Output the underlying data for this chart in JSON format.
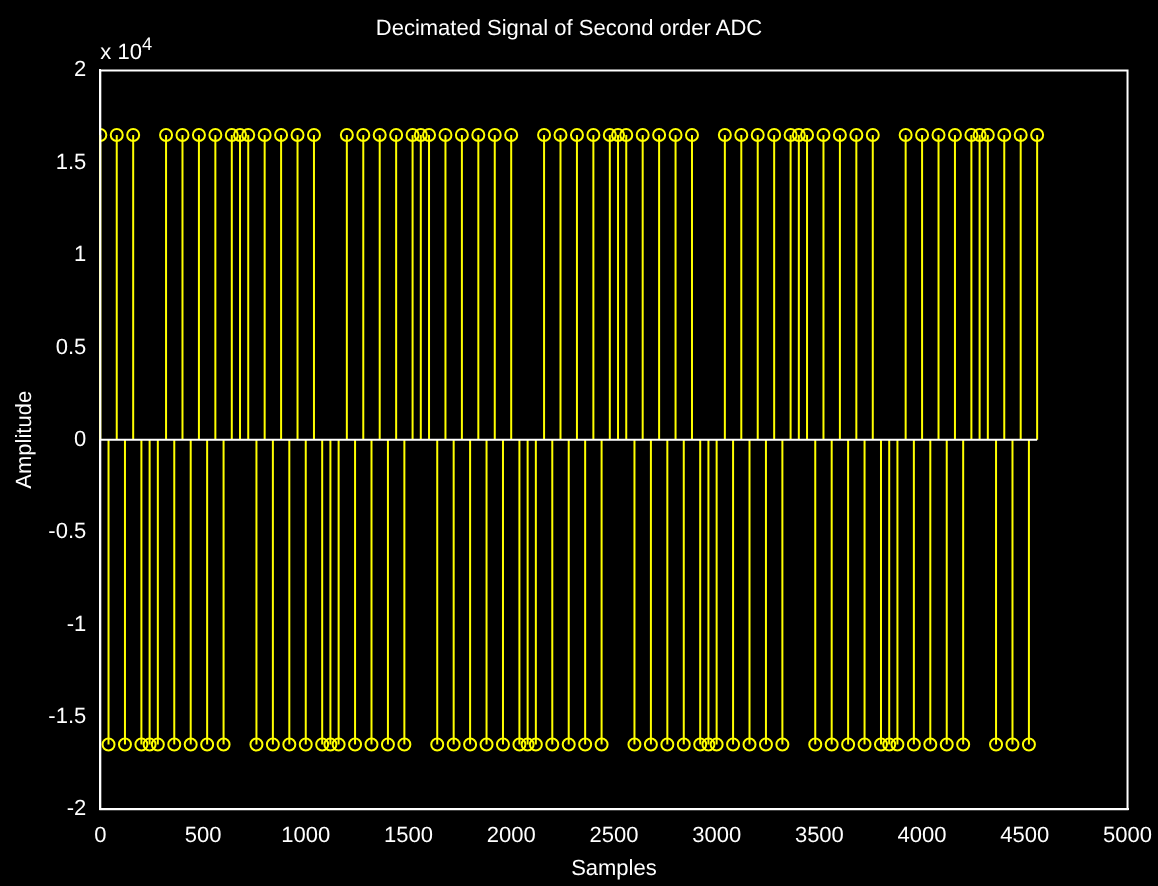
{
  "chart_data": {
    "type": "lollipop",
    "title": "Decimated Signal of Second order ADC",
    "xlabel": "Samples",
    "ylabel": "Amplitude",
    "annotations": [
      "x 10$^{4}$"
    ],
    "ref_lines": [
      {
        "axis": "y",
        "value": 0,
        "color": "#ffffff"
      }
    ],
    "marker": "circle",
    "color": "#ffff00",
    "grid": false,
    "legend": false,
    "xlim": [
      0,
      5000
    ],
    "xticks": [
      0,
      500,
      1000,
      1500,
      2000,
      2500,
      3000,
      3500,
      4000,
      4500,
      5000
    ],
    "ylim": [
      -2,
      2
    ],
    "yticks": [
      -2,
      -1.5,
      -1,
      -0.5,
      0,
      0.5,
      1,
      1.5,
      2
    ],
    "x": [
      0,
      40,
      80,
      120,
      160,
      200,
      240,
      280,
      320,
      360,
      400,
      440,
      480,
      520,
      560,
      600,
      640,
      680,
      720,
      760,
      800,
      840,
      880,
      920,
      960,
      1000,
      1040,
      1080,
      1120,
      1160,
      1200,
      1240,
      1280,
      1320,
      1360,
      1400,
      1440,
      1480,
      1520,
      1560,
      1600,
      1640,
      1680,
      1720,
      1760,
      1800,
      1840,
      1880,
      1920,
      1960,
      2000,
      2040,
      2080,
      2120,
      2160,
      2200,
      2240,
      2280,
      2320,
      2360,
      2400,
      2440,
      2480,
      2520,
      2560,
      2600,
      2640,
      2680,
      2720,
      2760,
      2800,
      2840,
      2880,
      2920,
      2960,
      3000,
      3040,
      3080,
      3120,
      3160,
      3200,
      3240,
      3280,
      3320,
      3360,
      3400,
      3440,
      3480,
      3520,
      3560,
      3600,
      3640,
      3680,
      3720,
      3760,
      3800,
      3840,
      3880,
      3920,
      3960,
      4000,
      4040,
      4080,
      4120,
      4160,
      4200,
      4240,
      4280,
      4320,
      4360,
      4400,
      4440,
      4480,
      4520,
      4560
    ],
    "values": [
      1.65,
      -1.65,
      1.65,
      -1.65,
      1.65,
      -1.65,
      -1.65,
      -1.65,
      1.65,
      -1.65,
      1.65,
      -1.65,
      1.65,
      -1.65,
      1.65,
      -1.65,
      1.65,
      1.65,
      1.65,
      -1.65,
      1.65,
      -1.65,
      1.65,
      -1.65,
      1.65,
      -1.65,
      1.65,
      -1.65,
      -1.65,
      -1.65,
      1.65,
      -1.65,
      1.65,
      -1.65,
      1.65,
      -1.65,
      1.65,
      -1.65,
      1.65,
      1.65,
      1.65,
      -1.65,
      1.65,
      -1.65,
      1.65,
      -1.65,
      1.65,
      -1.65,
      1.65,
      -1.65,
      1.65,
      -1.65,
      -1.65,
      -1.65,
      1.65,
      -1.65,
      1.65,
      -1.65,
      1.65,
      -1.65,
      1.65,
      -1.65,
      1.65,
      1.65,
      1.65,
      -1.65,
      1.65,
      -1.65,
      1.65,
      -1.65,
      1.65,
      -1.65,
      1.65,
      -1.65,
      -1.65,
      -1.65,
      1.65,
      -1.65,
      1.65,
      -1.65,
      1.65,
      -1.65,
      1.65,
      -1.65,
      1.65,
      1.65,
      1.65,
      -1.65,
      1.65,
      -1.65,
      1.65,
      -1.65,
      1.65,
      -1.65,
      1.65,
      -1.65,
      -1.65,
      -1.65,
      1.65,
      -1.65,
      1.65,
      -1.65,
      1.65,
      -1.65,
      1.65,
      -1.65,
      1.65,
      1.65,
      1.65,
      -1.65,
      1.65,
      -1.65,
      1.65,
      -1.65,
      1.65
    ]
  }
}
